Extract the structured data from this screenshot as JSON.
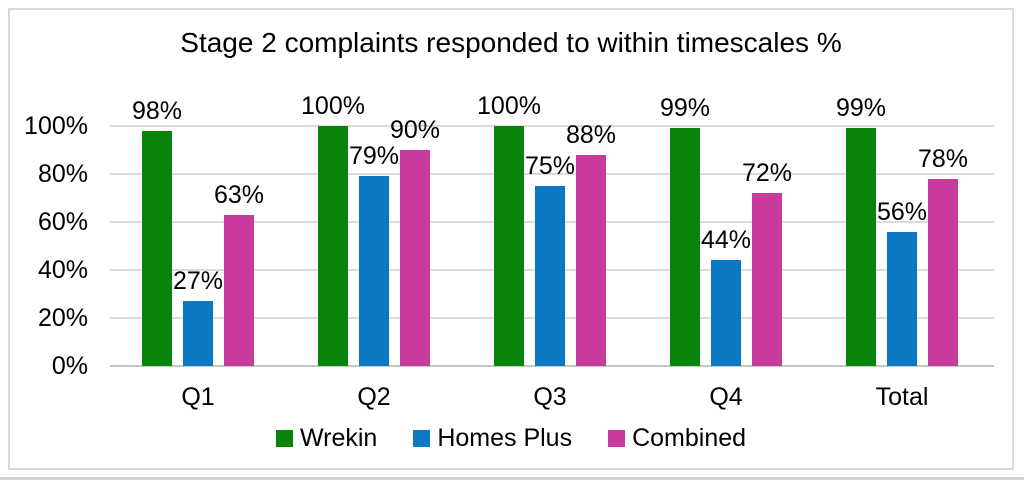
{
  "chart_data": {
    "type": "bar",
    "title": "Stage 2 complaints responded to within timescales %",
    "categories": [
      "Q1",
      "Q2",
      "Q3",
      "Q4",
      "Total"
    ],
    "series": [
      {
        "name": "Wrekin",
        "color": "#088408",
        "values": [
          98,
          100,
          100,
          99,
          99
        ]
      },
      {
        "name": "Homes Plus",
        "color": "#0d79c4",
        "values": [
          27,
          79,
          75,
          44,
          56
        ]
      },
      {
        "name": "Combined",
        "color": "#c93a9f",
        "values": [
          63,
          90,
          88,
          72,
          78
        ]
      }
    ],
    "data_labels": [
      "98%",
      "100%",
      "100%",
      "99%",
      "99%",
      "27%",
      "79%",
      "75%",
      "44%",
      "56%",
      "63%",
      "90%",
      "88%",
      "72%",
      "78%"
    ],
    "value_suffix": "%",
    "y_ticks": [
      "0%",
      "20%",
      "40%",
      "60%",
      "80%",
      "100%"
    ],
    "ylim": [
      0,
      100
    ],
    "grid": true,
    "legend_position": "bottom",
    "legend_entries": [
      "Wrekin",
      "Homes Plus",
      "Combined"
    ]
  },
  "colors": {
    "gridline": "#dcdcdc",
    "baseline": "#c6c6c6",
    "chart_border": "#d9d9d9",
    "page_divider": "#d2d2d2",
    "text": "#000000",
    "background": "#ffffff"
  }
}
